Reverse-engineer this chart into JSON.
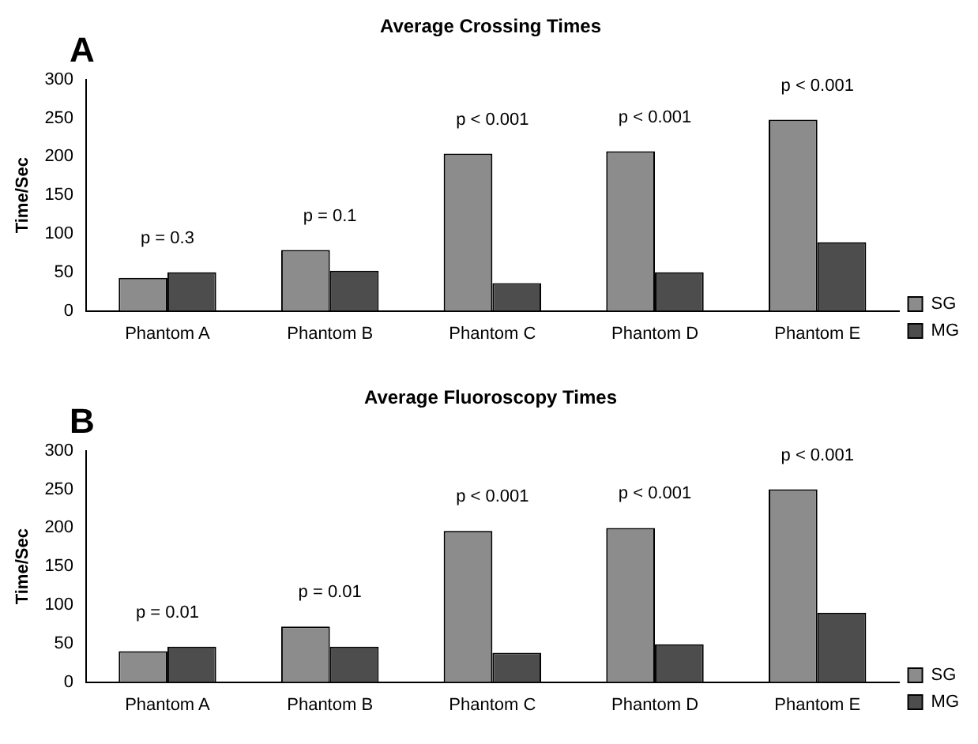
{
  "chart_data": [
    {
      "type": "bar",
      "title": "Average Crossing Times",
      "ylabel": "Time/Sec",
      "categories": [
        "Phantom A",
        "Phantom B",
        "Phantom C",
        "Phantom D",
        "Phantom E"
      ],
      "series": [
        {
          "name": "SG",
          "color": "#8c8c8c",
          "values": [
            43,
            79,
            204,
            207,
            248
          ]
        },
        {
          "name": "MG",
          "color": "#4d4d4d",
          "values": [
            50,
            52,
            36,
            50,
            89
          ]
        }
      ],
      "ylim": [
        0,
        300
      ],
      "yticks": [
        0,
        50,
        100,
        150,
        200,
        250,
        300
      ],
      "grid": false,
      "legend": "bottom right",
      "annotations": [
        "A",
        "p = 0.3",
        "p = 0.1",
        "p < 0.001",
        "p < 0.001",
        "p < 0.001"
      ]
    },
    {
      "type": "bar",
      "title": "Average Fluoroscopy Times",
      "ylabel": "Time/Sec",
      "categories": [
        "Phantom A",
        "Phantom B",
        "Phantom C",
        "Phantom D",
        "Phantom E"
      ],
      "series": [
        {
          "name": "SG",
          "color": "#8c8c8c",
          "values": [
            40,
            72,
            196,
            200,
            250
          ]
        },
        {
          "name": "MG",
          "color": "#4d4d4d",
          "values": [
            46,
            46,
            38,
            49,
            90
          ]
        }
      ],
      "ylim": [
        0,
        300
      ],
      "yticks": [
        0,
        50,
        100,
        150,
        200,
        250,
        300
      ],
      "grid": false,
      "legend": "bottom right",
      "annotations": [
        "B",
        "p = 0.01",
        "p = 0.01",
        "p < 0.001",
        "p < 0.001",
        "p < 0.001"
      ]
    }
  ]
}
